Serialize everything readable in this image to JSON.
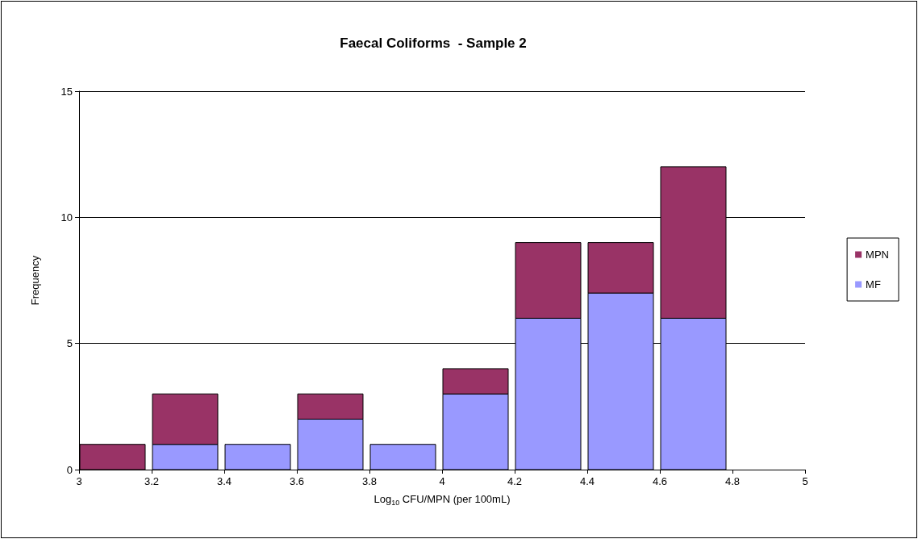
{
  "chart_data": {
    "type": "bar",
    "title": "Faecal Coliforms  - Sample 2",
    "xlabel": "Log$_{10}$ CFU/MPN (per 100mL)",
    "ylabel": "Frequency",
    "x": [
      3.1,
      3.3,
      3.5,
      3.7,
      3.9,
      4.1,
      4.3,
      4.5,
      4.7,
      4.9
    ],
    "stacked": true,
    "series": [
      {
        "name": "MF",
        "color": "#9999ff",
        "values": [
          0,
          1,
          1,
          2,
          1,
          3,
          6,
          7,
          6,
          0
        ]
      },
      {
        "name": "MPN",
        "color": "#993366",
        "values": [
          1,
          2,
          0,
          1,
          0,
          1,
          3,
          2,
          6,
          0
        ]
      }
    ],
    "xlim": [
      3,
      5
    ],
    "xticks": [
      3,
      3.2,
      3.4,
      3.6,
      3.8,
      4,
      4.2,
      4.4,
      4.6,
      4.8,
      5
    ],
    "ylim": [
      0,
      15
    ],
    "yticks": [
      0,
      5,
      10,
      15
    ],
    "grid": "y",
    "legend": "right"
  }
}
